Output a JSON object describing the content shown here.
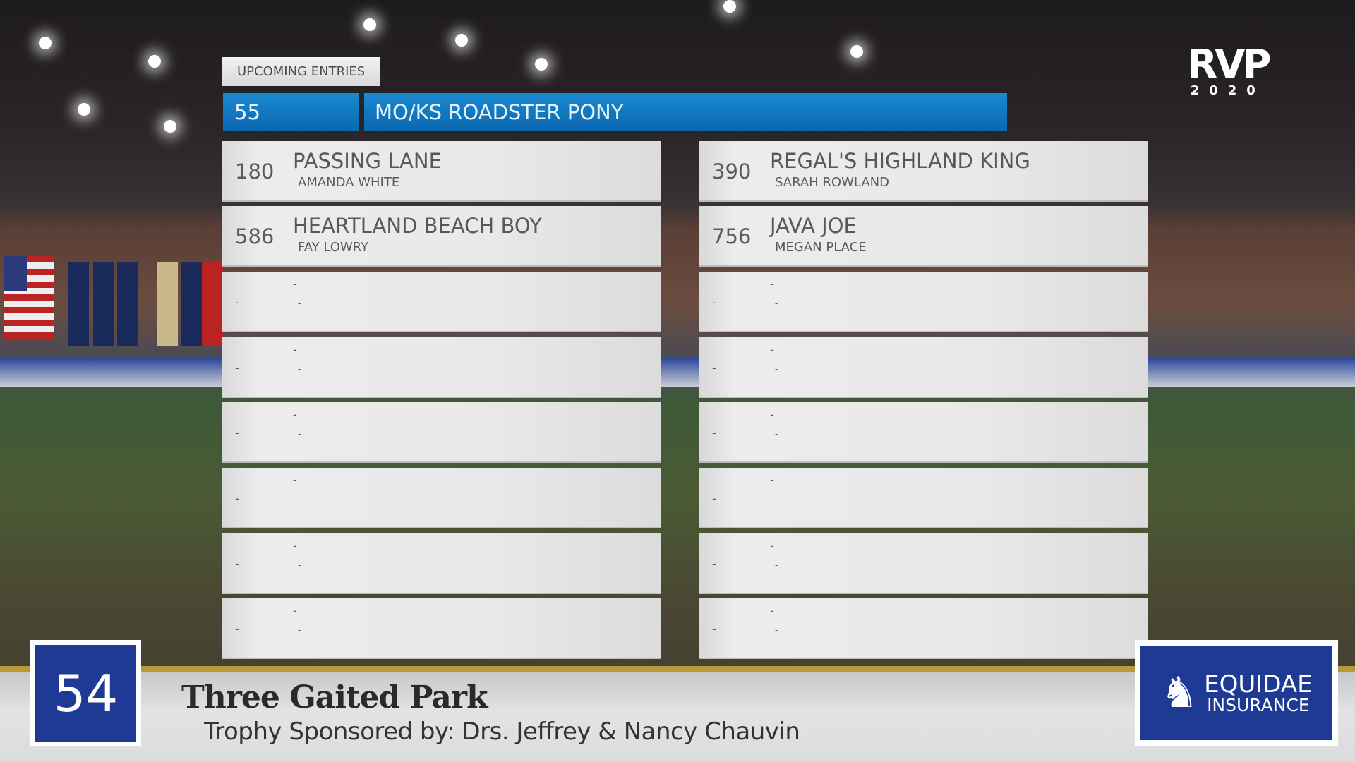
{
  "header": {
    "section_label": "UPCOMING ENTRIES",
    "class_number": "55",
    "class_name": "MO/KS ROADSTER PONY"
  },
  "logo_top": {
    "text": "RVP",
    "year": "2020"
  },
  "entries_left": [
    {
      "number": "180",
      "horse": "PASSING LANE",
      "rider": "AMANDA WHITE"
    },
    {
      "number": "586",
      "horse": "HEARTLAND BEACH BOY",
      "rider": "FAY LOWRY"
    },
    {
      "number": "-",
      "horse": "-",
      "rider": "-"
    },
    {
      "number": "-",
      "horse": "-",
      "rider": "-"
    },
    {
      "number": "-",
      "horse": "-",
      "rider": "-"
    },
    {
      "number": "-",
      "horse": "-",
      "rider": "-"
    },
    {
      "number": "-",
      "horse": "-",
      "rider": "-"
    },
    {
      "number": "-",
      "horse": "-",
      "rider": "-"
    }
  ],
  "entries_right": [
    {
      "number": "390",
      "horse": "REGAL'S HIGHLAND KING",
      "rider": "SARAH ROWLAND"
    },
    {
      "number": "756",
      "horse": "JAVA JOE",
      "rider": "MEGAN PLACE"
    },
    {
      "number": "-",
      "horse": "-",
      "rider": "-"
    },
    {
      "number": "-",
      "horse": "-",
      "rider": "-"
    },
    {
      "number": "-",
      "horse": "-",
      "rider": "-"
    },
    {
      "number": "-",
      "horse": "-",
      "rider": "-"
    },
    {
      "number": "-",
      "horse": "-",
      "rider": "-"
    },
    {
      "number": "-",
      "horse": "-",
      "rider": "-"
    }
  ],
  "current_class": {
    "number": "54",
    "title": "Three Gaited Park",
    "sponsor": "Trophy Sponsored by: Drs. Jeffrey & Nancy Chauvin"
  },
  "sponsor_logo": {
    "line1": "EQUIDAE",
    "line2": "INSURANCE",
    "icon": "horse-head-icon"
  },
  "colors": {
    "blue": "#0a72b8",
    "navy": "#1e3a94",
    "gold": "#b89a3a",
    "row": "#e9e9e9"
  }
}
